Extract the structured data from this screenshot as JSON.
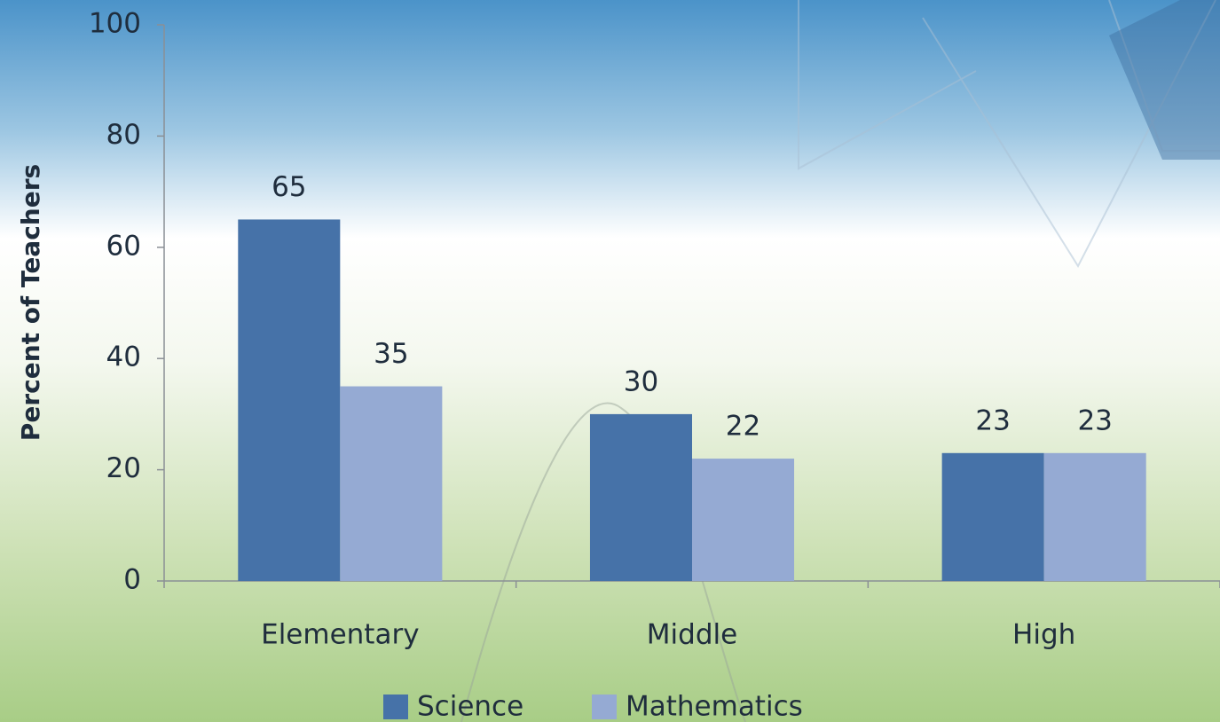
{
  "chart_data": {
    "type": "bar",
    "y_label": "Percent of Teachers",
    "categories": [
      "Elementary",
      "Middle",
      "High"
    ],
    "series": [
      {
        "name": "Science",
        "color": "#4672a8",
        "values": [
          65,
          30,
          23
        ]
      },
      {
        "name": "Mathematics",
        "color": "#95aad3",
        "values": [
          35,
          22,
          23
        ]
      }
    ],
    "ylim": [
      0,
      100
    ],
    "yticks": [
      0,
      20,
      40,
      60,
      80,
      100
    ],
    "grid": false,
    "legend": "bottom"
  }
}
